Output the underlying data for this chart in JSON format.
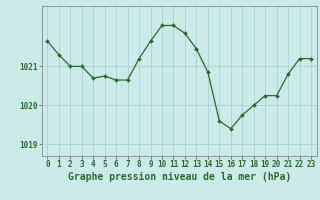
{
  "x": [
    0,
    1,
    2,
    3,
    4,
    5,
    6,
    7,
    8,
    9,
    10,
    11,
    12,
    13,
    14,
    15,
    16,
    17,
    18,
    19,
    20,
    21,
    22,
    23
  ],
  "y": [
    1021.65,
    1021.3,
    1021.0,
    1021.0,
    1020.7,
    1020.75,
    1020.65,
    1020.65,
    1021.2,
    1021.65,
    1022.05,
    1022.05,
    1021.85,
    1021.45,
    1020.85,
    1019.6,
    1019.4,
    1019.75,
    1020.0,
    1020.25,
    1020.25,
    1020.8,
    1021.2,
    1021.2
  ],
  "line_color": "#2d6a2d",
  "marker_color": "#2d6a2d",
  "bg_color": "#cceaea",
  "grid_color": "#aad4d4",
  "xlabel": "Graphe pression niveau de la mer (hPa)",
  "ylabel_ticks": [
    1019,
    1020,
    1021
  ],
  "xlim": [
    -0.5,
    23.5
  ],
  "ylim": [
    1018.7,
    1022.55
  ],
  "tick_fontsize": 5.5,
  "label_fontsize": 7.0,
  "figsize": [
    3.2,
    2.0
  ],
  "dpi": 100
}
